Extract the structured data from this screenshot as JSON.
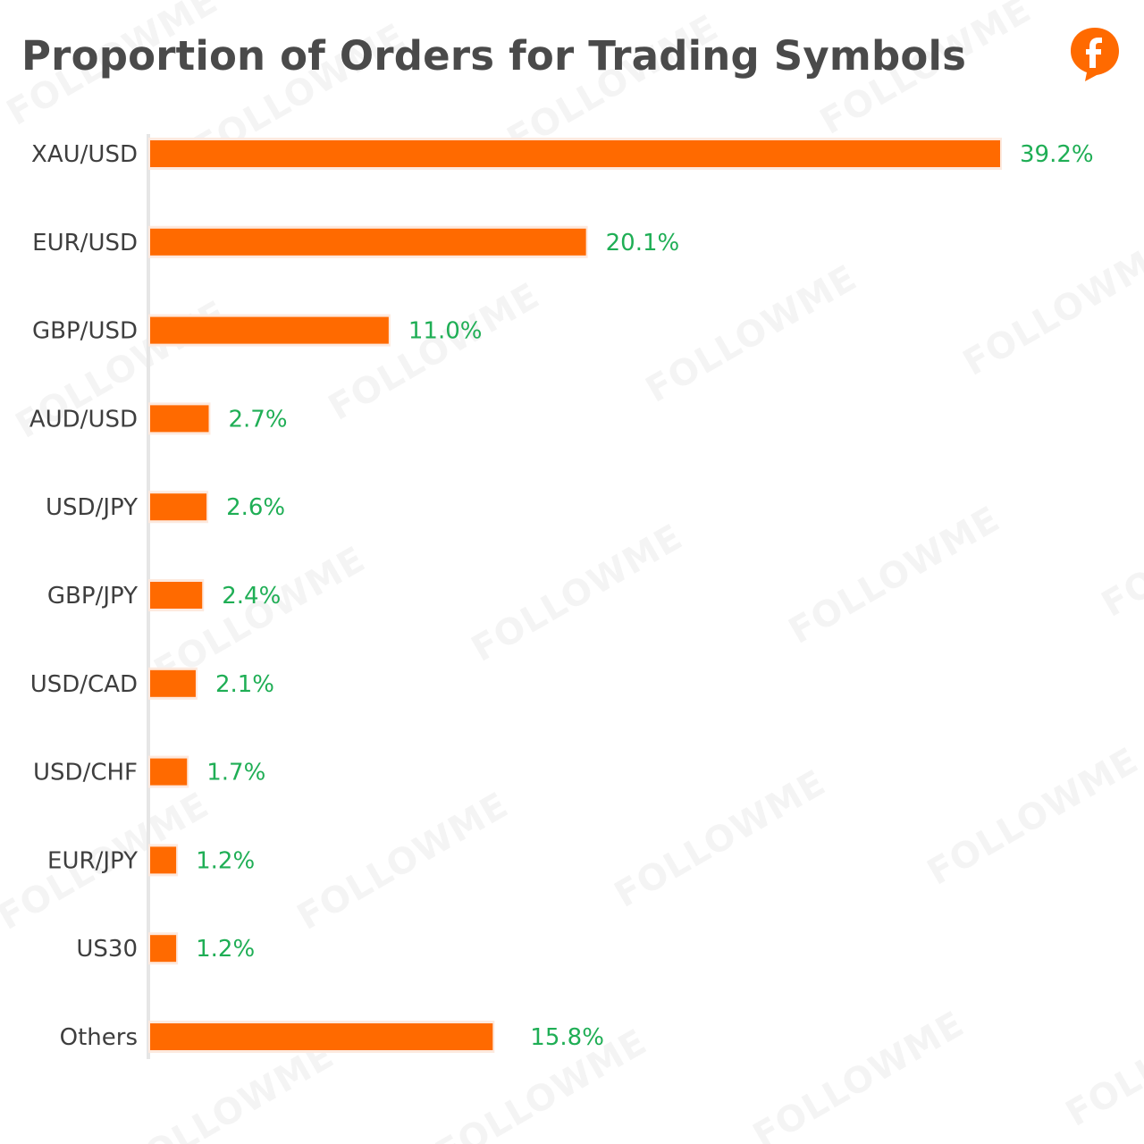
{
  "title": "Proportion of Orders for Trading Symbols",
  "watermark_text": "FOLLOWME",
  "brand": {
    "accent": "#ff6a00",
    "value_color": "#1fae55",
    "logo_icon": "followme-logo-icon"
  },
  "chart_data": {
    "type": "bar",
    "orientation": "horizontal",
    "title": "Proportion of Orders for Trading Symbols",
    "categories": [
      "XAU/USD",
      "EUR/USD",
      "GBP/USD",
      "AUD/USD",
      "USD/JPY",
      "GBP/JPY",
      "USD/CAD",
      "USD/CHF",
      "EUR/JPY",
      "US30",
      "Others"
    ],
    "values": [
      39.2,
      20.1,
      11.0,
      2.7,
      2.6,
      2.4,
      2.1,
      1.7,
      1.2,
      1.2,
      15.8
    ],
    "value_labels": [
      "39.2%",
      "20.1%",
      "11.0%",
      "2.7%",
      "2.6%",
      "2.4%",
      "2.1%",
      "1.7%",
      "1.2%",
      "1.2%",
      "15.8%"
    ],
    "unit": "%",
    "bar_color": "#ff6a00",
    "label_color": "#1fae55",
    "xlabel": "",
    "ylabel": "",
    "grid": false,
    "legend": "none"
  }
}
